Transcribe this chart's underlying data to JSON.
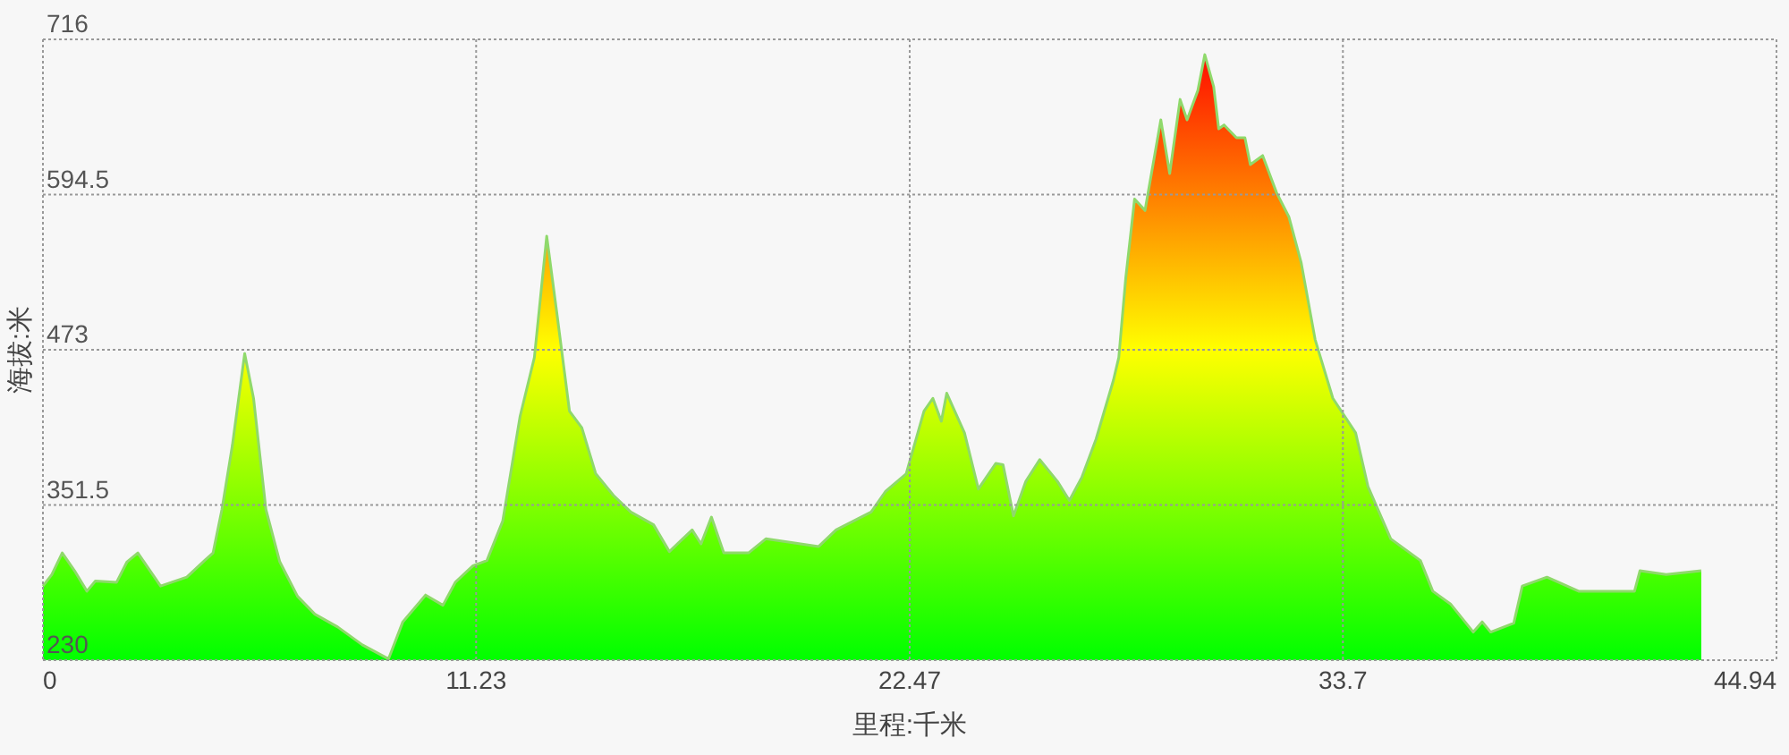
{
  "chart_data": {
    "type": "area",
    "xlabel": "里程:千米",
    "ylabel": "海拔:米",
    "xlim": [
      0,
      44.94
    ],
    "ylim": [
      230,
      716
    ],
    "xticks": [
      0,
      11.23,
      22.47,
      33.7,
      44.94
    ],
    "yticks": [
      230,
      351.5,
      473,
      594.5,
      716
    ],
    "grid": true,
    "series": [
      {
        "color": "#8fd96b",
        "x": [
          0,
          0.23,
          0.5,
          0.82,
          1.14,
          1.36,
          1.91,
          2.18,
          2.46,
          3.05,
          3.73,
          4.19,
          4.41,
          4.64,
          4.91,
          5.23,
          5.46,
          5.78,
          6.14,
          6.6,
          7.05,
          7.64,
          8.28,
          8.96,
          9.33,
          9.92,
          10.37,
          10.69,
          11.15,
          11.51,
          11.92,
          12.37,
          12.74,
          13.06,
          13.33,
          13.65,
          13.97,
          14.33,
          14.79,
          15.24,
          15.83,
          16.24,
          16.83,
          17.06,
          17.33,
          17.65,
          18.29,
          18.74,
          20.11,
          20.56,
          21.47,
          21.84,
          22.38,
          22.84,
          23.07,
          23.29,
          23.43,
          23.89,
          24.25,
          24.7,
          24.89,
          25.16,
          25.48,
          25.84,
          26.3,
          26.61,
          26.93,
          27.3,
          27.75,
          27.89,
          28.07,
          28.3,
          28.57,
          28.98,
          29.21,
          29.48,
          29.66,
          29.94,
          30.12,
          30.35,
          30.48,
          30.62,
          30.94,
          31.16,
          31.3,
          31.62,
          31.98,
          32.3,
          32.62,
          32.98,
          33.44,
          34.03,
          34.35,
          34.94,
          35.71,
          36.03,
          36.49,
          37.08,
          37.31,
          37.53,
          38.13,
          38.35,
          38.99,
          39.81,
          40.4,
          41.26,
          41.4,
          42.08,
          42.99
        ],
        "values": [
          288,
          297,
          314,
          300,
          284,
          292,
          291,
          307,
          314,
          288,
          295,
          308,
          314,
          348,
          398,
          470,
          435,
          348,
          307,
          280,
          266,
          256,
          242,
          231,
          260,
          281,
          273,
          291,
          304,
          308,
          339,
          421,
          467,
          562,
          500,
          425,
          412,
          376,
          359,
          346,
          336,
          315,
          332,
          321,
          342,
          314,
          314,
          325,
          319,
          332,
          346,
          362,
          376,
          425,
          435,
          417,
          439,
          408,
          364,
          384,
          383,
          343,
          370,
          387,
          370,
          355,
          373,
          403,
          449,
          467,
          529,
          591,
          582,
          653,
          611,
          669,
          653,
          676,
          704,
          679,
          646,
          649,
          639,
          639,
          618,
          625,
          596,
          577,
          541,
          481,
          435,
          408,
          366,
          325,
          308,
          284,
          274,
          252,
          260,
          252,
          259,
          288,
          295,
          284,
          284,
          284,
          300,
          297,
          300
        ]
      }
    ]
  }
}
